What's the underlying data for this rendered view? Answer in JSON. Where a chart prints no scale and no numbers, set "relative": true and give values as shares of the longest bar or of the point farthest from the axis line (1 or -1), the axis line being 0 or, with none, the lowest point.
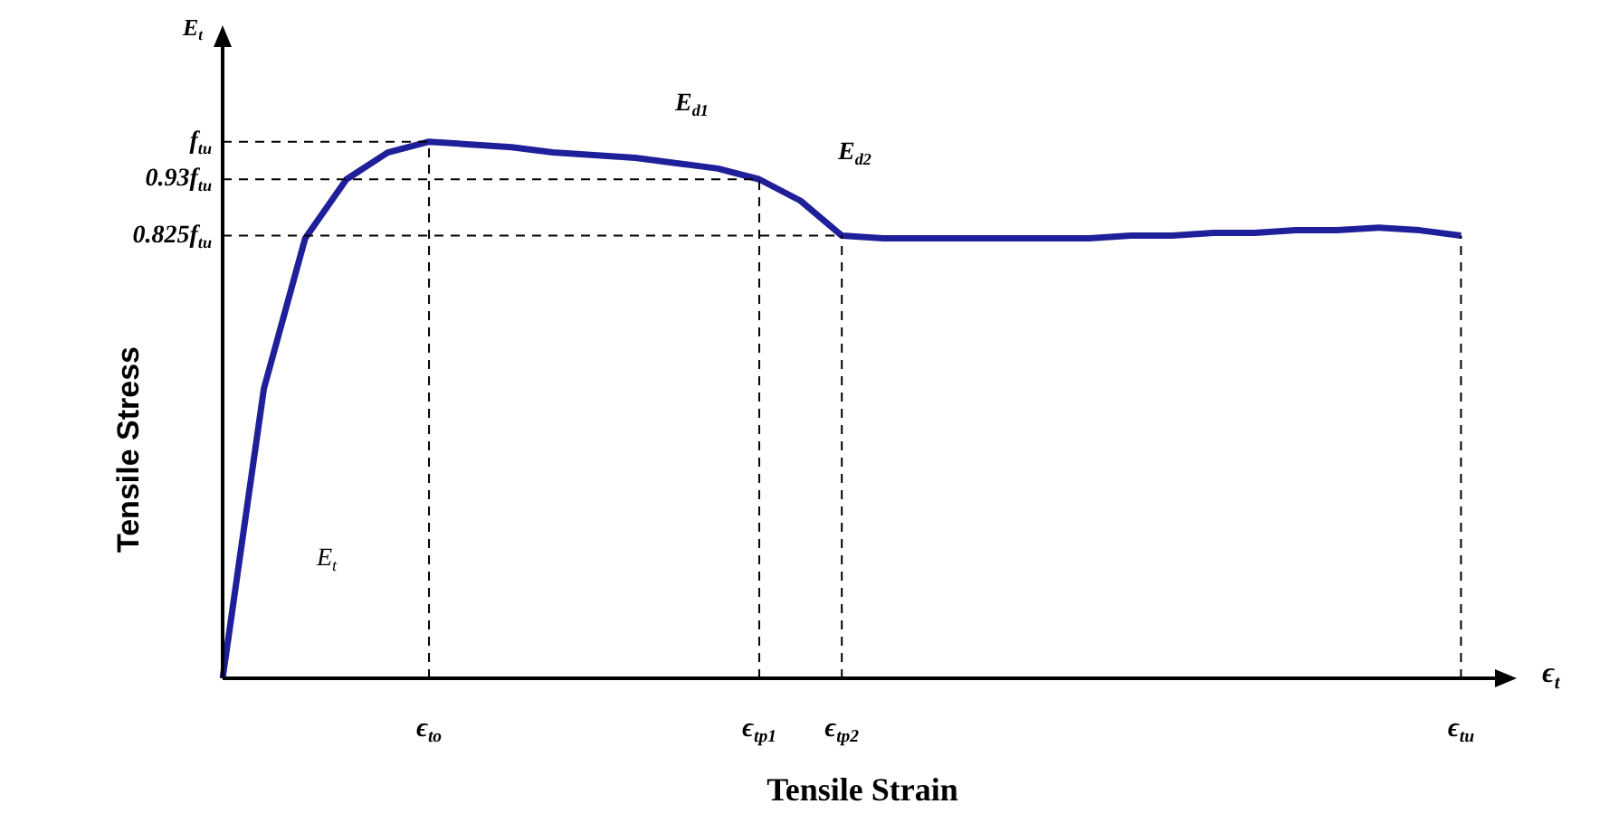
{
  "chart_data": {
    "type": "line",
    "xlabel": "Tensile Strain",
    "ylabel": "Tensile Stress",
    "relative": true,
    "categories": [
      null,
      null,
      null,
      null,
      null,
      "ϵ$_{to}$",
      null,
      null,
      null,
      null,
      null,
      null,
      null,
      "ϵ$_{tp1}$",
      null,
      "ϵ$_{tp2}$",
      null,
      null,
      null,
      null,
      null,
      null,
      null,
      null,
      null,
      null,
      null,
      null,
      null,
      null,
      "ϵ$_{tu}$",
      null
    ],
    "grid": false,
    "legend": false,
    "marker": "none",
    "line_style": "solid",
    "series": [
      {
        "color": "#1f1f9a",
        "values": [
          0,
          0.54,
          0.82,
          0.93,
          0.98,
          1,
          0.995,
          0.99,
          0.98,
          0.975,
          0.97,
          0.96,
          0.95,
          0.93,
          0.89,
          0.825,
          0.82,
          0.82,
          0.82,
          0.82,
          0.82,
          0.82,
          0.825,
          0.825,
          0.83,
          0.83,
          0.835,
          0.835,
          0.84,
          0.835,
          0.825,
          null
        ]
      }
    ],
    "ref_lines": [
      {
        "axis": "y",
        "value": 1,
        "label": "f$_{tu}$",
        "line_style": "dashed"
      },
      {
        "axis": "y",
        "value": 0.93,
        "label": "0.93f$_{tu}$",
        "line_style": "dashed"
      },
      {
        "axis": "y",
        "value": 0.825,
        "label": "0.825f$_{tu}$",
        "line_style": "dashed"
      },
      {
        "axis": "x",
        "value": "ϵ$_{to}$",
        "line_style": "dashed"
      },
      {
        "axis": "x",
        "value": "ϵ$_{tp1}$",
        "line_style": "dashed"
      },
      {
        "axis": "x",
        "value": "ϵ$_{tp2}$",
        "line_style": "dashed"
      },
      {
        "axis": "x",
        "value": "ϵ$_{tu}$",
        "line_style": "dashed"
      }
    ],
    "annotations": [
      "E$_{t}$",
      "ϵ$_{t}$",
      "E$_{t}$",
      "E$_{d1}$",
      "E$_{d2}$"
    ]
  }
}
